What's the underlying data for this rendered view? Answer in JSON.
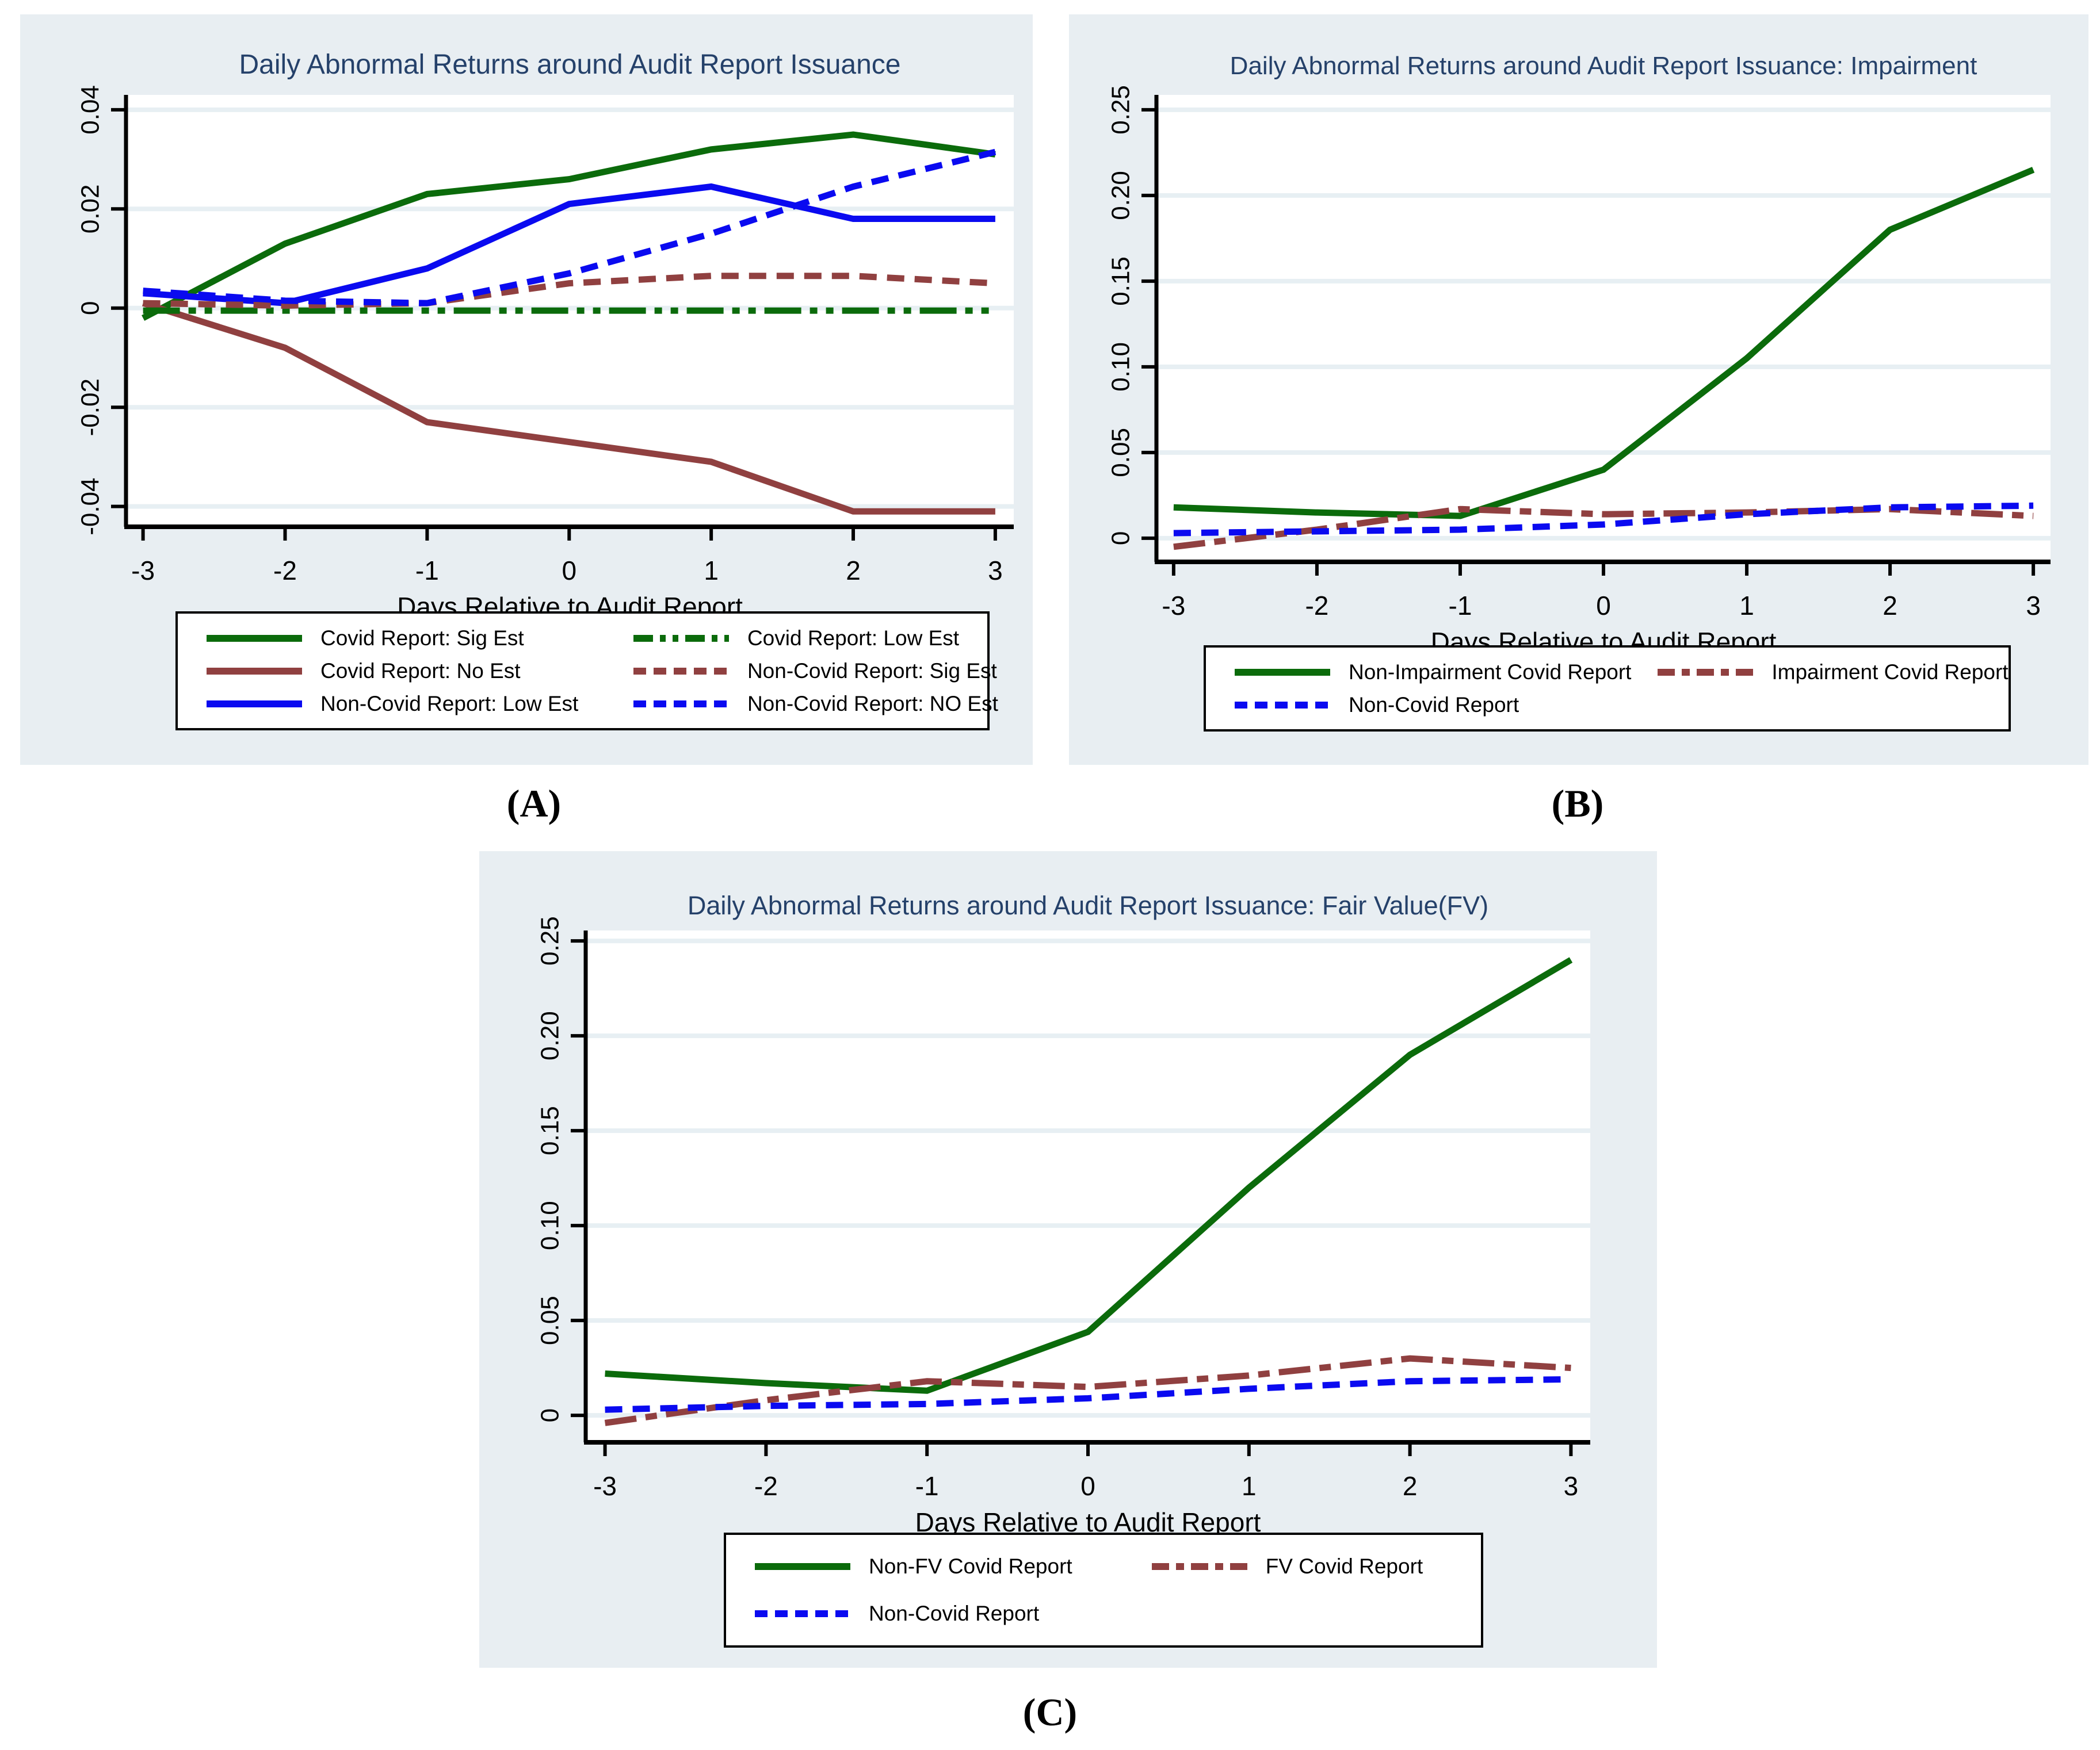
{
  "figure": {
    "colors": {
      "panel_bg": "#e8eef2",
      "plot_bg": "#ffffff",
      "grid": "#e7eff3",
      "axis": "#000000",
      "title": "#25416a",
      "green": "#0b6b0b",
      "maroon": "#904040",
      "blue": "#0a0af0"
    }
  },
  "chart_data": [
    {
      "type": "line",
      "caption": "(A)",
      "title": "Daily Abnormal Returns around Audit Report Issuance",
      "xlabel": "Days Relative to Audit Report",
      "ylabel": "",
      "x": [
        -3,
        -2,
        -1,
        0,
        1,
        2,
        3
      ],
      "xtick_labels": [
        "-3",
        "-2",
        "-1",
        "0",
        "1",
        "2",
        "3"
      ],
      "xlim": [
        -3.12,
        3.13
      ],
      "yticks": [
        0.04,
        0.02,
        0,
        -0.02,
        -0.04
      ],
      "ytick_labels": [
        "0.04",
        "0.02",
        "0",
        "-0.02",
        "-0.04"
      ],
      "ylim": [
        -0.0441,
        0.043
      ],
      "grid": true,
      "legend_position": "bottom",
      "series": [
        {
          "name": "Covid Report: Sig Est",
          "color": "green",
          "dash": "solid",
          "values": [
            -0.002,
            0.013,
            0.023,
            0.026,
            0.032,
            0.035,
            0.031
          ]
        },
        {
          "name": "Covid Report: No Est",
          "color": "maroon",
          "dash": "solid",
          "values": [
            0.001,
            -0.008,
            -0.023,
            -0.027,
            -0.031,
            -0.041,
            -0.041
          ]
        },
        {
          "name": "Non-Covid Report: Low Est",
          "color": "blue",
          "dash": "solid",
          "values": [
            0.003,
            0.001,
            0.008,
            0.021,
            0.0245,
            0.018,
            0.018
          ]
        },
        {
          "name": "Covid Report: Low Est",
          "color": "green",
          "dash": "dashdotdot",
          "values": [
            -0.0005,
            -0.0005,
            -0.0005,
            -0.0005,
            -0.0005,
            -0.0005,
            -0.0005
          ]
        },
        {
          "name": "Non-Covid Report: Sig Est",
          "color": "maroon",
          "dash": "dash",
          "values": [
            0.001,
            0.0005,
            0.001,
            0.005,
            0.0065,
            0.0065,
            0.005
          ]
        },
        {
          "name": "Non-Covid Report: NO Est",
          "color": "blue",
          "dash": "dash",
          "values": [
            0.0035,
            0.0015,
            0.001,
            0.007,
            0.015,
            0.0245,
            0.0315
          ]
        }
      ],
      "legend_grid": [
        [
          0,
          3
        ],
        [
          1,
          4
        ],
        [
          2,
          5
        ]
      ]
    },
    {
      "type": "line",
      "caption": "(B)",
      "title": "Daily Abnormal Returns around Audit Report Issuance: Impairment",
      "xlabel": "Days Relative to Audit Report",
      "ylabel": "",
      "x": [
        -3,
        -2,
        -1,
        0,
        1,
        2,
        3
      ],
      "xtick_labels": [
        "-3",
        "-2",
        "-1",
        "0",
        "1",
        "2",
        "3"
      ],
      "xlim": [
        -3.12,
        3.12
      ],
      "yticks": [
        0.25,
        0.2,
        0.15,
        0.1,
        0.05,
        0
      ],
      "ytick_labels": [
        "0.25",
        "0.20",
        "0.15",
        "0.10",
        "0.05",
        "0"
      ],
      "ylim": [
        -0.0138,
        0.2587
      ],
      "grid": true,
      "legend_position": "bottom",
      "series": [
        {
          "name": "Non-Impairment Covid Report",
          "color": "green",
          "dash": "solid",
          "values": [
            0.018,
            0.015,
            0.013,
            0.04,
            0.105,
            0.18,
            0.215
          ]
        },
        {
          "name": "Impairment Covid Report",
          "color": "maroon",
          "dash": "dashdot",
          "values": [
            -0.005,
            0.005,
            0.017,
            0.014,
            0.015,
            0.017,
            0.013
          ]
        },
        {
          "name": "Non-Covid Report",
          "color": "blue",
          "dash": "dash",
          "values": [
            0.003,
            0.004,
            0.005,
            0.008,
            0.014,
            0.018,
            0.019
          ]
        }
      ],
      "legend_grid": [
        [
          0,
          1
        ],
        [
          2,
          -1
        ]
      ]
    },
    {
      "type": "line",
      "caption": "(C)",
      "title": "Daily Abnormal Returns around Audit Report Issuance: Fair Value(FV)",
      "xlabel": "Days Relative to Audit Report",
      "ylabel": "",
      "x": [
        -3,
        -2,
        -1,
        0,
        1,
        2,
        3
      ],
      "xtick_labels": [
        "-3",
        "-2",
        "-1",
        "0",
        "1",
        "2",
        "3"
      ],
      "xlim": [
        -3.12,
        3.12
      ],
      "yticks": [
        0.25,
        0.2,
        0.15,
        0.1,
        0.05,
        0
      ],
      "ytick_labels": [
        "0.25",
        "0.20",
        "0.15",
        "0.10",
        "0.05",
        "0"
      ],
      "ylim": [
        -0.0142,
        0.2555
      ],
      "grid": true,
      "legend_position": "bottom",
      "series": [
        {
          "name": "Non-FV Covid Report",
          "color": "green",
          "dash": "solid",
          "values": [
            0.022,
            0.017,
            0.013,
            0.044,
            0.12,
            0.19,
            0.24
          ]
        },
        {
          "name": "FV Covid Report",
          "color": "maroon",
          "dash": "dashdot",
          "values": [
            -0.004,
            0.008,
            0.018,
            0.015,
            0.021,
            0.03,
            0.025
          ]
        },
        {
          "name": "Non-Covid Report",
          "color": "blue",
          "dash": "dash",
          "values": [
            0.003,
            0.005,
            0.006,
            0.009,
            0.014,
            0.018,
            0.019
          ]
        }
      ],
      "legend_grid": [
        [
          0,
          1
        ],
        [
          2,
          -1
        ]
      ]
    }
  ]
}
